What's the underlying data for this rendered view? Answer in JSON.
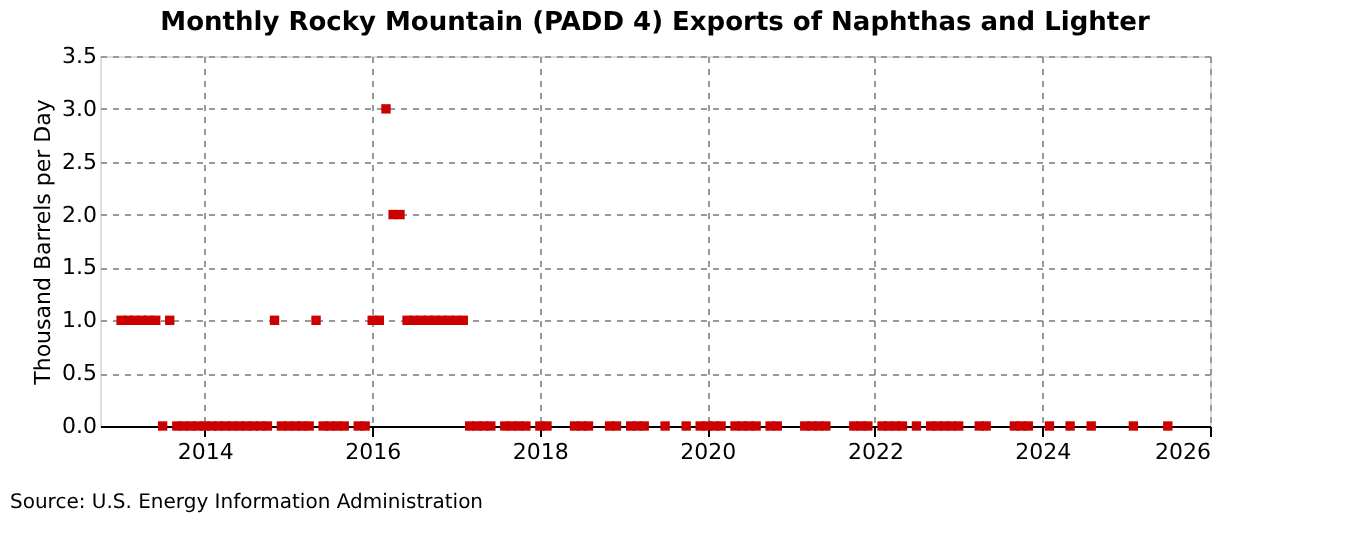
{
  "chart_data": {
    "type": "scatter",
    "title": "Monthly Rocky Mountain (PADD 4) Exports of Naphthas and Lighter",
    "ylabel": "Thousand Barrels per Day",
    "annotations": [
      "Source: U.S. Energy Information Administration"
    ],
    "marker": "square",
    "grid": true,
    "legend": false,
    "xlim": [
      "2012-10",
      "2026-01"
    ],
    "xticks": [
      "2014",
      "2016",
      "2018",
      "2020",
      "2022",
      "2024",
      "2026"
    ],
    "ylim": [
      0,
      3.5
    ],
    "yticks": [
      {
        "value": 0,
        "label": "0.0"
      },
      {
        "value": 0.5,
        "label": "0.5"
      },
      {
        "value": 1,
        "label": "1.0"
      },
      {
        "value": 1.5,
        "label": "1.5"
      },
      {
        "value": 2,
        "label": "2.0"
      },
      {
        "value": 2.5,
        "label": "2.5"
      },
      {
        "value": 3,
        "label": "3.0"
      },
      {
        "value": 3.5,
        "label": "3.5"
      }
    ],
    "series": [
      {
        "color": "#cc0000",
        "x": [
          "2013-01",
          "2013-02",
          "2013-03",
          "2013-04",
          "2013-05",
          "2013-06",
          "2013-07",
          "2013-08",
          "2013-09",
          "2013-10",
          "2013-11",
          "2013-12",
          "2014-01",
          "2014-02",
          "2014-03",
          "2014-04",
          "2014-05",
          "2014-06",
          "2014-07",
          "2014-08",
          "2014-09",
          "2014-10",
          "2014-11",
          "2014-12",
          "2015-01",
          "2015-02",
          "2015-03",
          "2015-04",
          "2015-05",
          "2015-06",
          "2015-07",
          "2015-08",
          "2015-09",
          "2015-11",
          "2015-12",
          "2016-01",
          "2016-02",
          "2016-03",
          "2016-04",
          "2016-05",
          "2016-06",
          "2016-07",
          "2016-08",
          "2016-09",
          "2016-10",
          "2016-11",
          "2016-12",
          "2017-01",
          "2017-02",
          "2017-03",
          "2017-04",
          "2017-05",
          "2017-06",
          "2017-08",
          "2017-09",
          "2017-10",
          "2017-11",
          "2018-01",
          "2018-02",
          "2018-06",
          "2018-07",
          "2018-08",
          "2018-11",
          "2018-12",
          "2019-02",
          "2019-03",
          "2019-04",
          "2019-07",
          "2019-10",
          "2019-12",
          "2020-01",
          "2020-02",
          "2020-03",
          "2020-05",
          "2020-06",
          "2020-07",
          "2020-08",
          "2020-10",
          "2020-11",
          "2021-03",
          "2021-04",
          "2021-05",
          "2021-06",
          "2021-10",
          "2021-11",
          "2021-12",
          "2022-02",
          "2022-03",
          "2022-04",
          "2022-05",
          "2022-07",
          "2022-09",
          "2022-10",
          "2022-11",
          "2022-12",
          "2023-01",
          "2023-04",
          "2023-05",
          "2023-09",
          "2023-10",
          "2023-11",
          "2024-02",
          "2024-05",
          "2024-08",
          "2025-02",
          "2025-07"
        ],
        "values": [
          1,
          1,
          1,
          1,
          1,
          1,
          0,
          1,
          0,
          0,
          0,
          0,
          0,
          0,
          0,
          0,
          0,
          0,
          0,
          0,
          0,
          0,
          1,
          0,
          0,
          0,
          0,
          0,
          1,
          0,
          0,
          0,
          0,
          0,
          0,
          1,
          1,
          3,
          2,
          2,
          1,
          1,
          1,
          1,
          1,
          1,
          1,
          1,
          1,
          0,
          0,
          0,
          0,
          0,
          0,
          0,
          0,
          0,
          0,
          0,
          0,
          0,
          0,
          0,
          0,
          0,
          0,
          0,
          0,
          0,
          0,
          0,
          0,
          0,
          0,
          0,
          0,
          0,
          0,
          0,
          0,
          0,
          0,
          0,
          0,
          0,
          0,
          0,
          0,
          0,
          0,
          0,
          0,
          0,
          0,
          0,
          0,
          0,
          0,
          0,
          0,
          0,
          0,
          0,
          0,
          0
        ]
      }
    ]
  }
}
